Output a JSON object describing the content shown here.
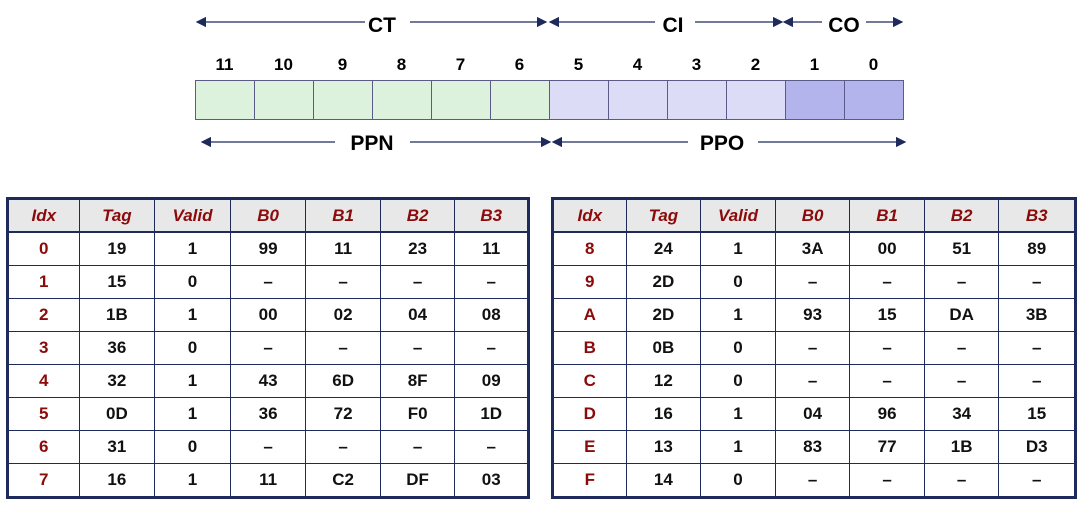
{
  "address": {
    "top_fields": {
      "ct": "CT",
      "ci": "CI",
      "co": "CO"
    },
    "bottom_fields": {
      "ppn": "PPN",
      "ppo": "PPO"
    },
    "bits": [
      "11",
      "10",
      "9",
      "8",
      "7",
      "6",
      "5",
      "4",
      "3",
      "2",
      "1",
      "0"
    ]
  },
  "colors": {
    "tag_bits": "#ddf2dd",
    "index_bits": "#dcdcf6",
    "offset_bits": "#b4b4ec",
    "header_text": "#8b0a0a",
    "border": "#1f2a5c"
  },
  "table_headers": [
    "Idx",
    "Tag",
    "Valid",
    "B0",
    "B1",
    "B2",
    "B3"
  ],
  "left_table": [
    [
      "0",
      "19",
      "1",
      "99",
      "11",
      "23",
      "11"
    ],
    [
      "1",
      "15",
      "0",
      "–",
      "–",
      "–",
      "–"
    ],
    [
      "2",
      "1B",
      "1",
      "00",
      "02",
      "04",
      "08"
    ],
    [
      "3",
      "36",
      "0",
      "–",
      "–",
      "–",
      "–"
    ],
    [
      "4",
      "32",
      "1",
      "43",
      "6D",
      "8F",
      "09"
    ],
    [
      "5",
      "0D",
      "1",
      "36",
      "72",
      "F0",
      "1D"
    ],
    [
      "6",
      "31",
      "0",
      "–",
      "–",
      "–",
      "–"
    ],
    [
      "7",
      "16",
      "1",
      "11",
      "C2",
      "DF",
      "03"
    ]
  ],
  "right_table": [
    [
      "8",
      "24",
      "1",
      "3A",
      "00",
      "51",
      "89"
    ],
    [
      "9",
      "2D",
      "0",
      "–",
      "–",
      "–",
      "–"
    ],
    [
      "A",
      "2D",
      "1",
      "93",
      "15",
      "DA",
      "3B"
    ],
    [
      "B",
      "0B",
      "0",
      "–",
      "–",
      "–",
      "–"
    ],
    [
      "C",
      "12",
      "0",
      "–",
      "–",
      "–",
      "–"
    ],
    [
      "D",
      "16",
      "1",
      "04",
      "96",
      "34",
      "15"
    ],
    [
      "E",
      "13",
      "1",
      "83",
      "77",
      "1B",
      "D3"
    ],
    [
      "F",
      "14",
      "0",
      "–",
      "–",
      "–",
      "–"
    ]
  ]
}
